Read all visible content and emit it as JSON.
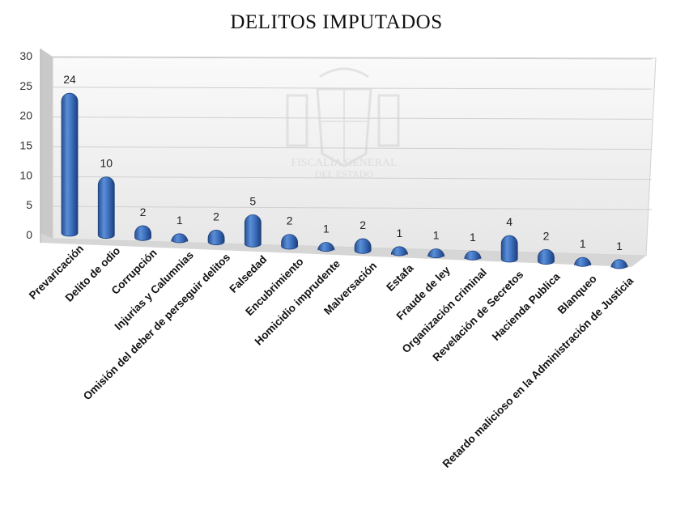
{
  "chart_data": {
    "type": "bar",
    "title": "DELITOS IMPUTADOS",
    "xlabel": "",
    "ylabel": "",
    "ylim": [
      0,
      30
    ],
    "yticks": [
      0,
      5,
      10,
      15,
      20,
      25,
      30
    ],
    "grid": true,
    "bar_color": "#3f6fb8",
    "categories": [
      "Prevaricación",
      "Delito de odio",
      "Corrupción",
      "Injurias y Calumnias",
      "Omisión del deber de perseguir delitos",
      "Falsedad",
      "Encubrimiento",
      "Homicidio imprudente",
      "Malversación",
      "Estafa",
      "Fraude de ley",
      "Organización criminal",
      "Revelación de Secretos",
      "Hacienda Publica",
      "Blanqueo",
      "Retardo malicioso en la Administración de Justicia"
    ],
    "values": [
      24,
      10,
      2,
      1,
      2,
      5,
      2,
      1,
      2,
      1,
      1,
      1,
      4,
      2,
      1,
      1
    ]
  },
  "watermark": {
    "line1": "FISCALÍA GENERAL",
    "line2": "DEL ESTADO"
  }
}
